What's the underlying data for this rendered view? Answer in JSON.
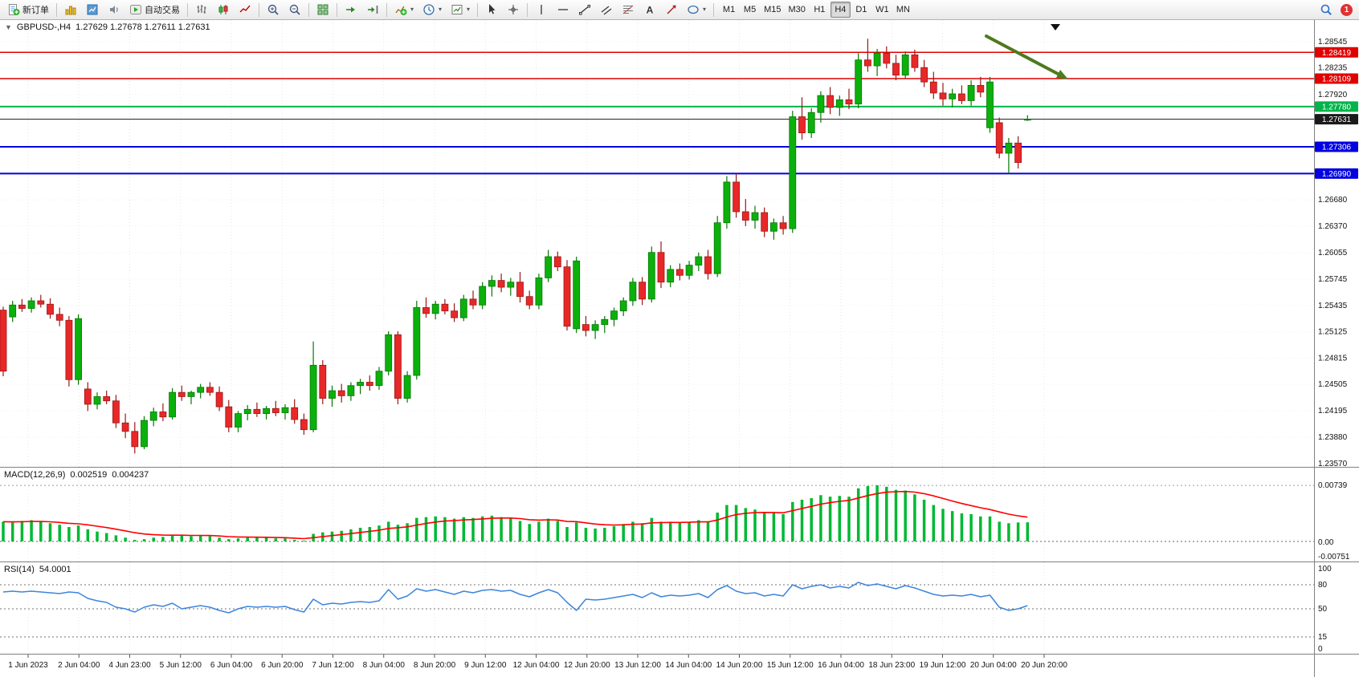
{
  "window": {
    "symbol_period": "GBPUSD-,H4",
    "ohlc": "1.27629 1.27678 1.27611 1.27631"
  },
  "toolbar": {
    "new_order": "新订单",
    "autotrading": "自动交易",
    "timeframes": [
      "M1",
      "M5",
      "M15",
      "M30",
      "H1",
      "H4",
      "D1",
      "W1",
      "MN"
    ],
    "active_timeframe": "H4",
    "badge_count": "1",
    "icon_names": [
      "new-order-icon",
      "charts-icon",
      "market-watch-icon",
      "sound-icon",
      "autotrading-icon",
      "bar-chart-type-icon",
      "candlestick-type-icon",
      "line-chart-type-icon",
      "zoom-in-icon",
      "zoom-out-icon",
      "tile-windows-icon",
      "auto-scroll-icon",
      "chart-shift-icon",
      "indicators-icon",
      "periods-clock-icon",
      "templates-icon",
      "cursor-icon",
      "crosshair-icon",
      "vertical-line-icon",
      "horizontal-line-icon",
      "trendline-icon",
      "channel-icon",
      "fibonacci-icon",
      "text-tool-icon",
      "arrows-tool-icon",
      "shapes-icon",
      "search-icon",
      "notification-badge"
    ]
  },
  "colors": {
    "bull": "#0cb00c",
    "bull_border": "#067806",
    "bear": "#e82828",
    "bear_border": "#9c1717",
    "macd_hist": "#00b832",
    "macd_signal": "#ff0000",
    "rsi_line": "#3d85dd",
    "grid": "#e7e7e7",
    "arrow": "#4e7a1d",
    "scale_line": "#808080"
  },
  "chart_data": {
    "type": "candlestick",
    "symbol": "GBPUSD-",
    "timeframe": "H4",
    "current": {
      "open": 1.27629,
      "high": 1.27678,
      "low": 1.27611,
      "close": 1.27631
    },
    "price_axis": {
      "min": 1.23532,
      "max": 1.288,
      "labels": [
        "1.28545",
        "1.28235",
        "1.27920",
        "1.26680",
        "1.26370",
        "1.26055",
        "1.25745",
        "1.25435",
        "1.25125",
        "1.24815",
        "1.24505",
        "1.24195",
        "1.23880",
        "1.23570"
      ]
    },
    "hlines": [
      {
        "price": 1.28419,
        "label": "1.28419",
        "color": "#e00000",
        "width": 1.5
      },
      {
        "price": 1.28109,
        "label": "1.28109",
        "color": "#e00000",
        "width": 1.5
      },
      {
        "price": 1.2778,
        "label": "1.27780",
        "color": "#00b44a",
        "width": 2
      },
      {
        "price": 1.27631,
        "label": "1.27631",
        "color": "#1a1a1a",
        "width": 1
      },
      {
        "price": 1.27306,
        "label": "1.27306",
        "color": "#0000e0",
        "width": 2
      },
      {
        "price": 1.2699,
        "label": "1.26990",
        "color": "#0000e0",
        "width": 2
      }
    ],
    "annotation": {
      "type": "arrow",
      "direction": "down-right",
      "color": "#4e7a1d"
    },
    "time_labels": [
      "1 Jun 2023",
      "2 Jun 04:00",
      "4 Jun 23:00",
      "5 Jun 12:00",
      "6 Jun 04:00",
      "6 Jun 20:00",
      "7 Jun 12:00",
      "8 Jun 04:00",
      "8 Jun 20:00",
      "9 Jun 12:00",
      "12 Jun 04:00",
      "12 Jun 20:00",
      "13 Jun 12:00",
      "14 Jun 04:00",
      "14 Jun 20:00",
      "15 Jun 12:00",
      "16 Jun 04:00",
      "18 Jun 23:00",
      "19 Jun 12:00",
      "20 Jun 04:00",
      "20 Jun 20:00"
    ],
    "candles": [
      [
        1.2538,
        1.2542,
        1.246,
        1.2466
      ],
      [
        1.253,
        1.2549,
        1.2524,
        1.2544
      ],
      [
        1.2544,
        1.2551,
        1.2536,
        1.254
      ],
      [
        1.254,
        1.2553,
        1.2535,
        1.2549
      ],
      [
        1.2549,
        1.2556,
        1.2541,
        1.2545
      ],
      [
        1.2545,
        1.2552,
        1.2528,
        1.2533
      ],
      [
        1.2533,
        1.2541,
        1.2519,
        1.2526
      ],
      [
        1.2526,
        1.2531,
        1.2448,
        1.2456
      ],
      [
        1.2456,
        1.2533,
        1.245,
        1.2528
      ],
      [
        1.2445,
        1.2453,
        1.2419,
        1.2427
      ],
      [
        1.2427,
        1.2441,
        1.2421,
        1.2436
      ],
      [
        1.2436,
        1.2443,
        1.2427,
        1.2431
      ],
      [
        1.2431,
        1.2438,
        1.2399,
        1.2405
      ],
      [
        1.2405,
        1.2416,
        1.2387,
        1.2395
      ],
      [
        1.2395,
        1.2406,
        1.2369,
        1.2377
      ],
      [
        1.2377,
        1.2413,
        1.2374,
        1.2408
      ],
      [
        1.2408,
        1.2423,
        1.2401,
        1.2418
      ],
      [
        1.2418,
        1.2428,
        1.2407,
        1.2412
      ],
      [
        1.2412,
        1.2446,
        1.2409,
        1.2441
      ],
      [
        1.2441,
        1.2449,
        1.2431,
        1.2436
      ],
      [
        1.2436,
        1.2443,
        1.2427,
        1.2441
      ],
      [
        1.2441,
        1.2451,
        1.2434,
        1.2447
      ],
      [
        1.2447,
        1.2453,
        1.2437,
        1.2441
      ],
      [
        1.2441,
        1.2448,
        1.2419,
        1.2424
      ],
      [
        1.2424,
        1.2432,
        1.2394,
        1.24
      ],
      [
        1.24,
        1.2419,
        1.2394,
        1.2416
      ],
      [
        1.2416,
        1.2426,
        1.2408,
        1.2421
      ],
      [
        1.2421,
        1.2429,
        1.2412,
        1.2416
      ],
      [
        1.2416,
        1.2425,
        1.2409,
        1.2422
      ],
      [
        1.2422,
        1.2431,
        1.2413,
        1.2417
      ],
      [
        1.2417,
        1.2427,
        1.2409,
        1.2423
      ],
      [
        1.2423,
        1.2433,
        1.2404,
        1.2409
      ],
      [
        1.2409,
        1.2416,
        1.2391,
        1.2397
      ],
      [
        1.2397,
        1.2501,
        1.2394,
        1.2473
      ],
      [
        1.2473,
        1.2479,
        1.2427,
        1.2434
      ],
      [
        1.2434,
        1.2449,
        1.2424,
        1.2443
      ],
      [
        1.2443,
        1.2451,
        1.2429,
        1.2437
      ],
      [
        1.2437,
        1.2453,
        1.2431,
        1.2449
      ],
      [
        1.2449,
        1.2457,
        1.2439,
        1.2453
      ],
      [
        1.2453,
        1.2461,
        1.2443,
        1.2449
      ],
      [
        1.2449,
        1.2471,
        1.2444,
        1.2466
      ],
      [
        1.2466,
        1.2513,
        1.2461,
        1.2509
      ],
      [
        1.2509,
        1.2513,
        1.2427,
        1.2434
      ],
      [
        1.2434,
        1.2466,
        1.2429,
        1.2461
      ],
      [
        1.2461,
        1.2549,
        1.2456,
        1.2541
      ],
      [
        1.2541,
        1.2553,
        1.2529,
        1.2534
      ],
      [
        1.2534,
        1.2549,
        1.2527,
        1.2545
      ],
      [
        1.2545,
        1.2551,
        1.2533,
        1.2537
      ],
      [
        1.2537,
        1.2546,
        1.2524,
        1.2529
      ],
      [
        1.2529,
        1.2556,
        1.2525,
        1.2551
      ],
      [
        1.2551,
        1.2561,
        1.2539,
        1.2544
      ],
      [
        1.2544,
        1.2571,
        1.2539,
        1.2566
      ],
      [
        1.2566,
        1.2579,
        1.2554,
        1.2573
      ],
      [
        1.2573,
        1.2581,
        1.2559,
        1.2565
      ],
      [
        1.2565,
        1.2576,
        1.2555,
        1.2571
      ],
      [
        1.2571,
        1.2583,
        1.2547,
        1.2554
      ],
      [
        1.2554,
        1.2561,
        1.2539,
        1.2544
      ],
      [
        1.2544,
        1.2581,
        1.2539,
        1.2576
      ],
      [
        1.2576,
        1.2609,
        1.2571,
        1.2601
      ],
      [
        1.2601,
        1.2607,
        1.2584,
        1.2589
      ],
      [
        1.2589,
        1.2597,
        1.2514,
        1.2519
      ],
      [
        1.2516,
        1.2601,
        1.2511,
        1.2596
      ],
      [
        1.2521,
        1.2531,
        1.2507,
        1.2514
      ],
      [
        1.2514,
        1.2526,
        1.2504,
        1.2521
      ],
      [
        1.2521,
        1.2531,
        1.2511,
        1.2527
      ],
      [
        1.2527,
        1.2541,
        1.2519,
        1.2537
      ],
      [
        1.2537,
        1.2553,
        1.2531,
        1.2549
      ],
      [
        1.2549,
        1.2576,
        1.2543,
        1.2571
      ],
      [
        1.2571,
        1.2577,
        1.2544,
        1.2551
      ],
      [
        1.2551,
        1.2613,
        1.2547,
        1.2606
      ],
      [
        1.2606,
        1.2619,
        1.2564,
        1.2571
      ],
      [
        1.2571,
        1.2591,
        1.2565,
        1.2586
      ],
      [
        1.2586,
        1.2593,
        1.2573,
        1.2579
      ],
      [
        1.2579,
        1.2596,
        1.2574,
        1.2591
      ],
      [
        1.2591,
        1.2606,
        1.2584,
        1.2601
      ],
      [
        1.2601,
        1.2609,
        1.2574,
        1.2581
      ],
      [
        1.2581,
        1.2649,
        1.2577,
        1.2641
      ],
      [
        1.2641,
        1.2696,
        1.2634,
        1.2689
      ],
      [
        1.2689,
        1.2699,
        1.2647,
        1.2654
      ],
      [
        1.2654,
        1.2669,
        1.2637,
        1.2644
      ],
      [
        1.2644,
        1.2661,
        1.2634,
        1.2653
      ],
      [
        1.2653,
        1.2659,
        1.2624,
        1.2631
      ],
      [
        1.2631,
        1.2646,
        1.2621,
        1.2641
      ],
      [
        1.2641,
        1.2649,
        1.2627,
        1.2634
      ],
      [
        1.2634,
        1.2773,
        1.2629,
        1.2766
      ],
      [
        1.2766,
        1.2789,
        1.2739,
        1.2747
      ],
      [
        1.2747,
        1.2776,
        1.2741,
        1.2771
      ],
      [
        1.2771,
        1.2796,
        1.2759,
        1.2791
      ],
      [
        1.2791,
        1.2801,
        1.2769,
        1.2777
      ],
      [
        1.2777,
        1.2791,
        1.2767,
        1.2786
      ],
      [
        1.2786,
        1.2799,
        1.2775,
        1.2781
      ],
      [
        1.2781,
        1.2841,
        1.2776,
        1.2833
      ],
      [
        1.2833,
        1.2858,
        1.2819,
        1.2826
      ],
      [
        1.2826,
        1.2846,
        1.2814,
        1.2841
      ],
      [
        1.2841,
        1.2849,
        1.2823,
        1.2829
      ],
      [
        1.2829,
        1.2839,
        1.2809,
        1.2815
      ],
      [
        1.2815,
        1.2843,
        1.2811,
        1.2839
      ],
      [
        1.2839,
        1.2845,
        1.2819,
        1.2824
      ],
      [
        1.2824,
        1.2833,
        1.2801,
        1.2807
      ],
      [
        1.2807,
        1.2819,
        1.2787,
        1.2794
      ],
      [
        1.2794,
        1.2806,
        1.2779,
        1.2787
      ],
      [
        1.2787,
        1.2799,
        1.2777,
        1.2793
      ],
      [
        1.2793,
        1.2803,
        1.2781,
        1.2785
      ],
      [
        1.2785,
        1.2809,
        1.2779,
        1.2803
      ],
      [
        1.2803,
        1.2813,
        1.2789,
        1.2795
      ],
      [
        1.2753,
        1.2813,
        1.2747,
        1.2807
      ],
      [
        1.2759,
        1.2765,
        1.2717,
        1.2723
      ],
      [
        1.2723,
        1.2741,
        1.2699,
        1.2735
      ],
      [
        1.2735,
        1.2743,
        1.2705,
        1.2712
      ],
      [
        1.27629,
        1.27678,
        1.27611,
        1.27631
      ]
    ],
    "macd": {
      "label": "MACD(12,26,9)",
      "value_main": "0.002519",
      "value_signal": "0.004237",
      "scale_max": "0.00739",
      "scale_zero": "0.00",
      "scale_min": "-0.00751",
      "histogram": [
        0.0026,
        0.0025,
        0.0027,
        0.0028,
        0.0026,
        0.0024,
        0.0022,
        0.0019,
        0.0021,
        0.0016,
        0.0013,
        0.0011,
        0.0008,
        0.0005,
        0.0002,
        0.0003,
        0.0005,
        0.0006,
        0.0008,
        0.0008,
        0.0007,
        0.0008,
        0.0007,
        0.0005,
        0.0003,
        0.0004,
        0.0005,
        0.0005,
        0.0005,
        0.0004,
        0.0004,
        0.0002,
        0.0001,
        0.001,
        0.0012,
        0.0013,
        0.0014,
        0.0016,
        0.0018,
        0.0019,
        0.0021,
        0.0026,
        0.0022,
        0.0024,
        0.0031,
        0.0032,
        0.0033,
        0.0032,
        0.003,
        0.0032,
        0.0031,
        0.0033,
        0.0034,
        0.0032,
        0.0031,
        0.0027,
        0.0023,
        0.0026,
        0.003,
        0.0027,
        0.0019,
        0.0025,
        0.0018,
        0.0017,
        0.0018,
        0.002,
        0.0023,
        0.0026,
        0.0024,
        0.0031,
        0.0026,
        0.0026,
        0.0025,
        0.0026,
        0.0028,
        0.0026,
        0.0038,
        0.0048,
        0.0048,
        0.0044,
        0.0042,
        0.0039,
        0.0038,
        0.0036,
        0.0052,
        0.0055,
        0.0057,
        0.0061,
        0.0059,
        0.006,
        0.0059,
        0.007,
        0.0073,
        0.0074,
        0.0072,
        0.0068,
        0.0067,
        0.0062,
        0.0055,
        0.0048,
        0.0043,
        0.004,
        0.0037,
        0.0036,
        0.0033,
        0.0033,
        0.0026,
        0.0024,
        0.0025,
        0.00252
      ]
    },
    "rsi": {
      "label": "RSI(14)",
      "value": "54.0001",
      "scale_labels": [
        "100",
        "80",
        "50",
        "15",
        "0"
      ],
      "levels": [
        80,
        50,
        15
      ],
      "values": [
        71,
        72,
        71,
        72,
        71,
        70,
        69,
        71,
        70,
        63,
        60,
        58,
        52,
        50,
        46,
        52,
        55,
        53,
        57,
        50,
        52,
        54,
        52,
        48,
        45,
        50,
        53,
        52,
        53,
        52,
        53,
        49,
        46,
        62,
        55,
        57,
        56,
        58,
        59,
        58,
        60,
        74,
        62,
        66,
        75,
        72,
        74,
        71,
        68,
        72,
        70,
        73,
        74,
        72,
        73,
        68,
        65,
        70,
        74,
        70,
        58,
        48,
        62,
        61,
        62,
        64,
        66,
        68,
        64,
        70,
        65,
        67,
        66,
        67,
        69,
        64,
        74,
        79,
        72,
        69,
        70,
        66,
        68,
        66,
        80,
        75,
        78,
        80,
        76,
        78,
        76,
        83,
        79,
        81,
        78,
        75,
        79,
        76,
        72,
        68,
        66,
        67,
        66,
        68,
        65,
        67,
        52,
        48,
        50,
        54
      ]
    }
  }
}
